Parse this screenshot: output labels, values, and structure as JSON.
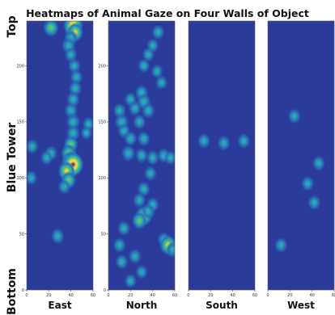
{
  "title": "Heatmaps of Animal Gaze on Four Walls of Object",
  "side_labels": {
    "top": "Top",
    "middle": "Blue Tower",
    "bottom": "Bottom"
  },
  "chart_data": {
    "type": "heatmap",
    "title": "Heatmaps of Animal Gaze on Four Walls of Object",
    "colormap": [
      "#2b3b9a",
      "#2a6fb9",
      "#2aa7b5",
      "#5cc46b",
      "#e6d93a",
      "#e7cf6a",
      "#7a3a4a"
    ],
    "xlim": [
      0,
      60
    ],
    "ylim": [
      0,
      240
    ],
    "x_ticks": [
      0,
      20,
      40,
      60
    ],
    "y_ticks": [
      0,
      50,
      100,
      150,
      200
    ],
    "panels": [
      {
        "name": "East",
        "show_y_ticks": true,
        "points": [
          [
            22,
            234,
            0.55
          ],
          [
            42,
            236,
            0.9
          ],
          [
            44,
            230,
            0.6
          ],
          [
            40,
            225,
            0.4
          ],
          [
            38,
            218,
            0.4
          ],
          [
            40,
            210,
            0.3
          ],
          [
            43,
            200,
            0.3
          ],
          [
            45,
            190,
            0.3
          ],
          [
            44,
            180,
            0.35
          ],
          [
            42,
            170,
            0.35
          ],
          [
            40,
            160,
            0.35
          ],
          [
            42,
            150,
            0.4
          ],
          [
            42,
            140,
            0.4
          ],
          [
            40,
            130,
            0.45
          ],
          [
            38,
            122,
            0.55
          ],
          [
            40,
            114,
            0.85
          ],
          [
            42,
            112,
            1.0
          ],
          [
            36,
            106,
            0.65
          ],
          [
            38,
            98,
            0.5
          ],
          [
            34,
            92,
            0.3
          ],
          [
            5,
            128,
            0.3
          ],
          [
            4,
            100,
            0.25
          ],
          [
            22,
            122,
            0.3
          ],
          [
            18,
            118,
            0.25
          ],
          [
            56,
            148,
            0.25
          ],
          [
            54,
            140,
            0.2
          ],
          [
            28,
            48,
            0.35
          ]
        ]
      },
      {
        "name": "North",
        "show_y_ticks": true,
        "points": [
          [
            45,
            230,
            0.3
          ],
          [
            40,
            218,
            0.25
          ],
          [
            36,
            210,
            0.25
          ],
          [
            32,
            200,
            0.25
          ],
          [
            44,
            195,
            0.25
          ],
          [
            48,
            185,
            0.25
          ],
          [
            20,
            170,
            0.25
          ],
          [
            24,
            162,
            0.3
          ],
          [
            30,
            176,
            0.35
          ],
          [
            32,
            168,
            0.4
          ],
          [
            36,
            160,
            0.35
          ],
          [
            10,
            160,
            0.3
          ],
          [
            12,
            150,
            0.4
          ],
          [
            14,
            142,
            0.3
          ],
          [
            28,
            150,
            0.3
          ],
          [
            32,
            135,
            0.3
          ],
          [
            20,
            135,
            0.3
          ],
          [
            18,
            122,
            0.4
          ],
          [
            30,
            120,
            0.3
          ],
          [
            40,
            118,
            0.3
          ],
          [
            50,
            120,
            0.3
          ],
          [
            56,
            118,
            0.25
          ],
          [
            38,
            104,
            0.3
          ],
          [
            32,
            90,
            0.3
          ],
          [
            28,
            80,
            0.3
          ],
          [
            40,
            76,
            0.3
          ],
          [
            32,
            66,
            0.65
          ],
          [
            28,
            62,
            0.5
          ],
          [
            36,
            70,
            0.4
          ],
          [
            14,
            55,
            0.3
          ],
          [
            10,
            40,
            0.3
          ],
          [
            24,
            30,
            0.3
          ],
          [
            12,
            25,
            0.3
          ],
          [
            50,
            45,
            0.3
          ],
          [
            54,
            40,
            0.65
          ],
          [
            58,
            36,
            0.4
          ],
          [
            20,
            8,
            0.25
          ],
          [
            30,
            16,
            0.25
          ]
        ]
      },
      {
        "name": "South",
        "show_y_ticks": false,
        "points": [
          [
            14,
            133,
            0.3
          ],
          [
            32,
            131,
            0.3
          ],
          [
            50,
            133,
            0.3
          ]
        ]
      },
      {
        "name": "West",
        "show_y_ticks": false,
        "points": [
          [
            24,
            155,
            0.3
          ],
          [
            46,
            113,
            0.3
          ],
          [
            36,
            95,
            0.3
          ],
          [
            42,
            78,
            0.3
          ],
          [
            12,
            40,
            0.3
          ]
        ]
      }
    ]
  }
}
